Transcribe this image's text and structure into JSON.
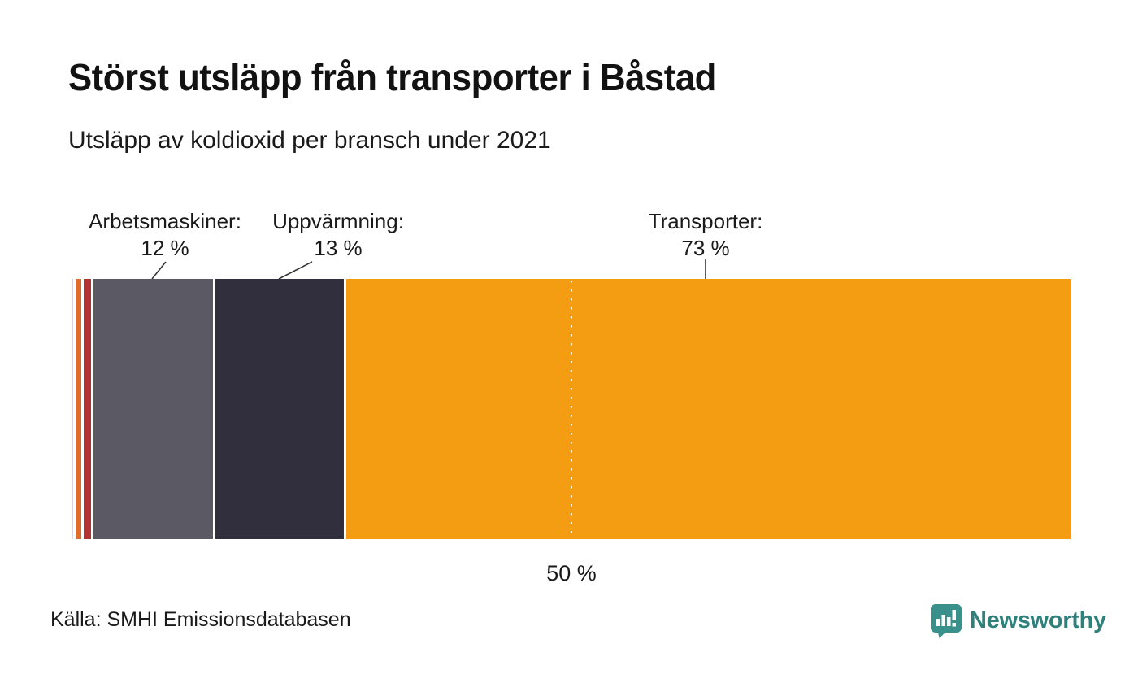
{
  "header": {
    "title": "Störst utsläpp från transporter i Båstad",
    "subtitle": "Utsläpp av koldioxid per bransch under 2021"
  },
  "chart_data": {
    "type": "bar",
    "variant": "horizontal-stacked-single-bar",
    "title": "Störst utsläpp från transporter i Båstad",
    "subtitle": "Utsläpp av koldioxid per bransch under 2021",
    "unit": "%",
    "xlim": [
      0,
      100
    ],
    "segments": [
      {
        "label": "",
        "value": 0.2,
        "color": "#d9d6de"
      },
      {
        "label": "",
        "value": 0.5,
        "color": "#e06d2c"
      },
      {
        "label": "",
        "value": 0.8,
        "color": "#b23434"
      },
      {
        "label": "Arbetsmaskiner",
        "name_label": "Arbetsmaskiner:",
        "value": 12,
        "value_label": "12 %",
        "color": "#5a5964"
      },
      {
        "label": "Uppvärmning",
        "name_label": "Uppvärmning:",
        "value": 13,
        "value_label": "13 %",
        "color": "#312f3d"
      },
      {
        "label": "Transporter",
        "name_label": "Transporter:",
        "value": 73,
        "value_label": "73 %",
        "color": "#f49d13"
      }
    ],
    "reference_line": {
      "value": 50,
      "label": "50 %",
      "style": "white-dotted"
    },
    "legend": "none",
    "grid": false
  },
  "footer": {
    "source": "Källa: SMHI Emissionsdatabasen",
    "brand": "Newsworthy"
  },
  "colors": {
    "background": "#ffffff",
    "text": "#1a1a1a",
    "brand_teal": "#2f7f7b",
    "leader_line": "#333333"
  }
}
